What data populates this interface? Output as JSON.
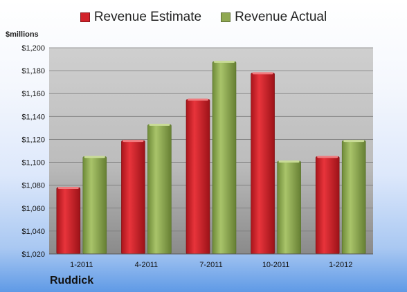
{
  "chart_data": {
    "type": "bar",
    "categories": [
      "1-2011",
      "4-2011",
      "7-2011",
      "10-2011",
      "1-2012"
    ],
    "series": [
      {
        "name": "Revenue Estimate",
        "values": [
          1078,
          1119,
          1155,
          1178,
          1105
        ],
        "color": "#d1222a"
      },
      {
        "name": "Revenue Actual",
        "values": [
          1105,
          1133,
          1188,
          1101,
          1119
        ],
        "color": "#8fa852"
      }
    ],
    "ylabel": "$millions",
    "ylim": [
      1020,
      1200
    ],
    "yticks": [
      "$1,020",
      "$1,040",
      "$1,060",
      "$1,080",
      "$1,100",
      "$1,120",
      "$1,140",
      "$1,160",
      "$1,180",
      "$1,200"
    ],
    "grid": true,
    "legend_position": "top"
  },
  "company": "Ruddick"
}
